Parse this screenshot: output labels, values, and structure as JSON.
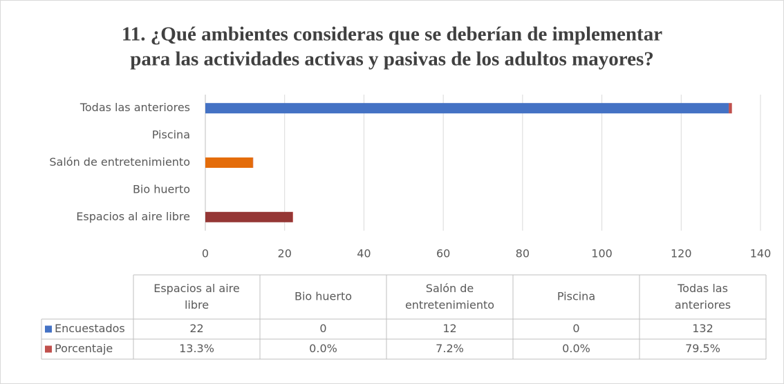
{
  "chart_data": {
    "type": "bar",
    "orientation": "horizontal",
    "stacked": true,
    "title": [
      "11. ¿Qué ambientes consideras que se deberían de implementar",
      "para las actividades activas y pasivas de los adultos mayores?"
    ],
    "categories": [
      "Espacios al aire libre",
      "Bio huerto",
      "Salón de entretenimiento",
      "Piscina",
      "Todas las anteriores"
    ],
    "table_headers": [
      "Espacios al aire libre",
      "Bio huerto",
      "Salón de entretenimiento",
      "Piscina",
      "Todas las anteriores"
    ],
    "series": [
      {
        "name": "Encuestados",
        "color": "#4472c4",
        "point_colors": [
          "#953735",
          "#4472c4",
          "#e46c0a",
          "#4472c4",
          "#4472c4"
        ],
        "values": [
          22,
          0,
          12,
          0,
          132
        ]
      },
      {
        "name": "Porcentaje",
        "color": "#c0504d",
        "values": [
          0.133,
          0,
          0.072,
          0,
          0.795
        ],
        "value_labels": [
          "13.3%",
          "0.0%",
          "7.2%",
          "0.0%",
          "79.5%"
        ]
      }
    ],
    "xlim": [
      0,
      140
    ],
    "xticks": [
      0,
      20,
      40,
      60,
      80,
      100,
      120,
      140
    ],
    "grid": true
  }
}
